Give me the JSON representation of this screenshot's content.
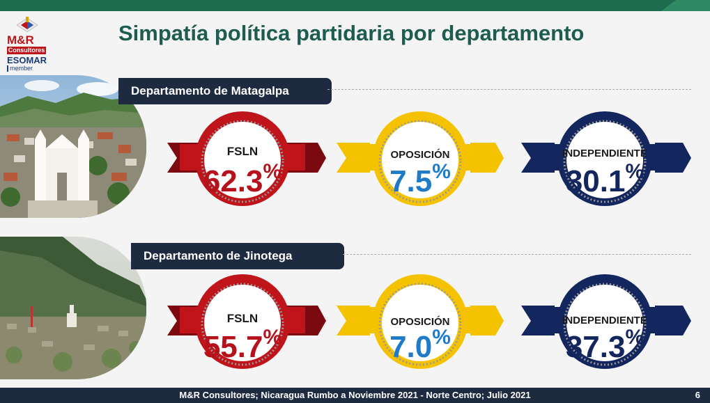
{
  "header": {
    "title": "Simpatía política partidaria por departamento"
  },
  "logo": {
    "brand": "M&R",
    "sub": "Consultores",
    "assoc": "ESOMAR",
    "member": "member"
  },
  "departments": [
    {
      "label": "Departamento de Matagalpa",
      "results": [
        {
          "party": "FSLN",
          "value": "62.3",
          "pct": "%"
        },
        {
          "party": "OPOSICIÓN",
          "value": "7.5",
          "pct": "%"
        },
        {
          "party": "INDEPENDIENTE",
          "value": "30.1",
          "pct": "%"
        }
      ]
    },
    {
      "label": "Departamento de Jinotega",
      "results": [
        {
          "party": "FSLN",
          "value": "55.7",
          "pct": "%"
        },
        {
          "party": "OPOSICIÓN",
          "value": "7.0",
          "pct": "%"
        },
        {
          "party": "INDEPENDIENTE",
          "value": "37.3",
          "pct": "%"
        }
      ]
    }
  ],
  "colors": {
    "fsln": "#c0141b",
    "oposicion": "#f5c200",
    "independiente": "#14265e",
    "fsln_text": "#b5121b",
    "oposicion_text": "#1f7bc8",
    "independiente_text": "#14265e"
  },
  "footer": {
    "source": "M&R Consultores; Nicaragua Rumbo a Noviembre 2021 - Norte Centro; Julio 2021",
    "page": "6"
  }
}
